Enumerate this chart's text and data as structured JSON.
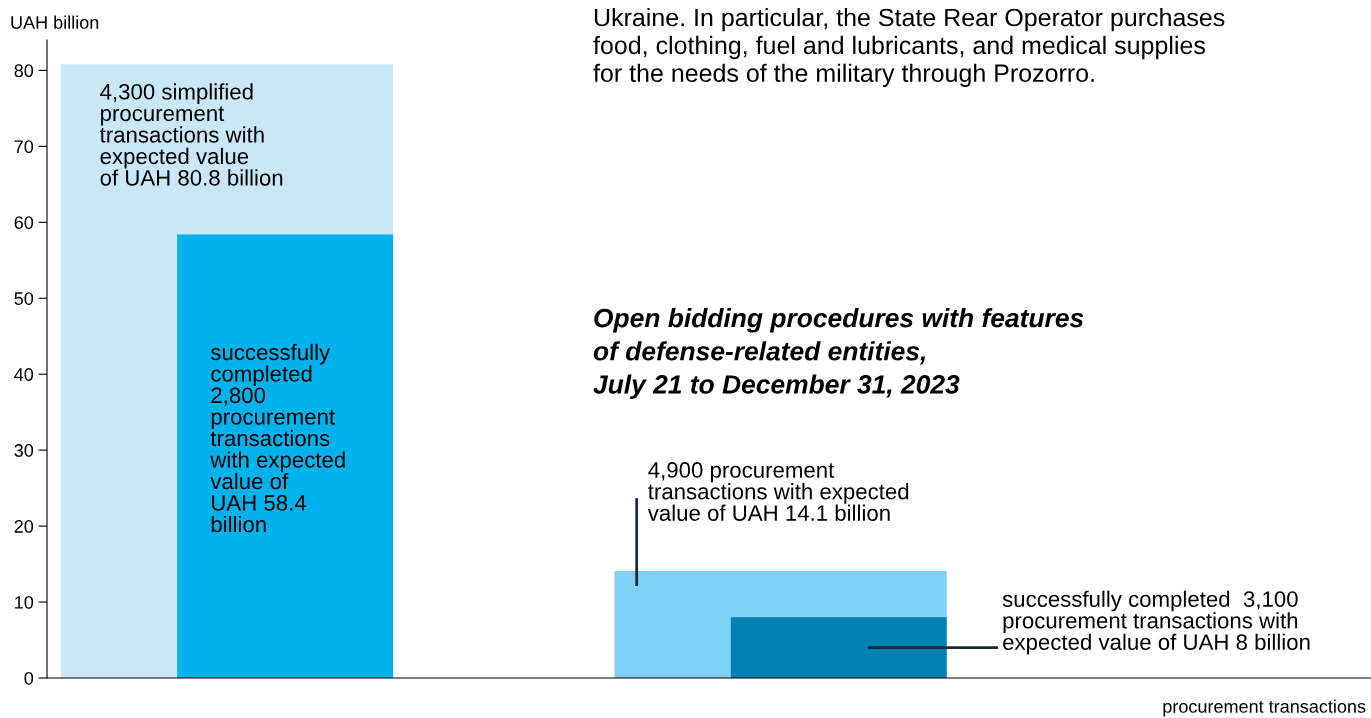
{
  "chart_data": {
    "type": "bar",
    "ylabel": "UAH billion",
    "xlabel": "procurement transactions",
    "categories": [
      null,
      null
    ],
    "series": [
      {
        "colors": [
          "#c9e7f7",
          "#7fd0f2"
        ],
        "values": [
          80.8,
          14.1
        ]
      },
      {
        "colors": [
          "#00b2ec",
          "#0081b3"
        ],
        "values": [
          58.4,
          8
        ]
      }
    ],
    "ylim": [
      0,
      84
    ],
    "yticks": [
      0,
      10,
      20,
      30,
      40,
      50,
      60,
      70,
      80
    ],
    "grid": false,
    "legend": false,
    "annotations": [
      "Ukraine. In particular, the State Rear Operator purchases\nfood, clothing, fuel and lubricants, and medical supplies\nfor the needs of the military through Prozorro.",
      "Open bidding procedures with features\nof defense-related entities,\nJuly 21 to December 31, 2023",
      "4,300 simplified\nprocurement\ntransactions with\nexpected value\nof UAH 80.8 billion",
      "successfully\ncompleted\n2,800\nprocurement\ntransactions\nwith expected\nvalue of\nUAH 58.4\nbillion",
      "4,900 procurement\ntransactions with expected\nvalue of UAH 14.1 billion",
      "successfully completed  3,100\nprocurement transactions with\nexpected value of UAH 8 billion"
    ]
  }
}
